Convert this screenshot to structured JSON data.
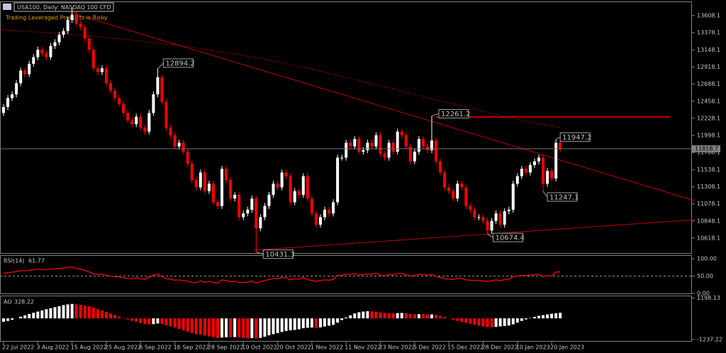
{
  "chart_data": {
    "type": "candlestick",
    "title": "USA100, Daily: NASDAQ 100 CFD",
    "subtitle": "Trading Leveraged Products is Risky",
    "up_color": "#ffffff",
    "down_color": "#ff0000",
    "categories": [
      "22 Jul 2022",
      null,
      null,
      null,
      null,
      null,
      null,
      null,
      "3 Aug 2022",
      null,
      null,
      null,
      null,
      null,
      null,
      null,
      "15 Aug 2022",
      null,
      null,
      null,
      null,
      null,
      null,
      null,
      "25 Aug 2022",
      null,
      null,
      null,
      null,
      null,
      null,
      null,
      "6 Sep 2022",
      null,
      null,
      null,
      null,
      null,
      null,
      null,
      "16 Sep 2022",
      null,
      null,
      null,
      null,
      null,
      null,
      null,
      "28 Sep 2022",
      null,
      null,
      null,
      null,
      null,
      null,
      null,
      "10 Oct 2022",
      null,
      null,
      null,
      null,
      null,
      null,
      null,
      "20 Oct 2022",
      null,
      null,
      null,
      null,
      null,
      null,
      null,
      "1 Nov 2022",
      null,
      null,
      null,
      null,
      null,
      null,
      null,
      "11 Nov 2022",
      null,
      null,
      null,
      null,
      null,
      null,
      null,
      "23 Nov 2022",
      null,
      null,
      null,
      null,
      null,
      null,
      null,
      "5 Dec 2022",
      null,
      null,
      null,
      null,
      null,
      null,
      null,
      "15 Dec 2022",
      null,
      null,
      null,
      null,
      null,
      null,
      null,
      "28 Dec 2022",
      null,
      null,
      null,
      null,
      null,
      null,
      null,
      "10 Jan 2023",
      null,
      null,
      null,
      null,
      null,
      null,
      null,
      "20 Jan 2023",
      null,
      null
    ],
    "open": [
      12300,
      12380,
      12500,
      12550,
      12700,
      12870,
      12820,
      12960,
      13050,
      13150,
      13100,
      13050,
      13200,
      13250,
      13350,
      13400,
      13550,
      13620,
      13500,
      13450,
      13300,
      13150,
      12900,
      12850,
      12900,
      12700,
      12600,
      12500,
      12420,
      12300,
      12200,
      12150,
      12250,
      12100,
      12050,
      12300,
      12550,
      12780,
      12450,
      12100,
      12000,
      11850,
      11900,
      11780,
      11620,
      11400,
      11300,
      11500,
      11250,
      11350,
      11100,
      11050,
      11550,
      11400,
      11150,
      11200,
      10900,
      10950,
      11000,
      11150,
      10750,
      10900,
      11050,
      11200,
      11350,
      11300,
      11500,
      11450,
      11100,
      11250,
      11200,
      11450,
      11150,
      10950,
      10800,
      10900,
      11000,
      10950,
      11100,
      11700,
      11700,
      11900,
      11850,
      11950,
      11780,
      11800,
      11900,
      11850,
      12000,
      11750,
      11700,
      11900,
      11780,
      12050,
      12000,
      11850,
      11650,
      11780,
      11950,
      11850,
      11800,
      11930,
      11650,
      11500,
      11300,
      11250,
      11150,
      11350,
      11300,
      11050,
      11000,
      10900,
      10900,
      10850,
      10720,
      10850,
      10950,
      10800,
      10980,
      11000,
      11350,
      11450,
      11550,
      11500,
      11600,
      11650,
      11700,
      11350,
      11520,
      11420,
      11900
    ],
    "high": [
      12420,
      12540,
      12590,
      12740,
      12910,
      12910,
      13000,
      13090,
      13190,
      13190,
      13140,
      13240,
      13290,
      13390,
      13440,
      13590,
      13720,
      13660,
      13540,
      13490,
      13340,
      13190,
      12940,
      12940,
      12940,
      12740,
      12640,
      12540,
      12460,
      12340,
      12240,
      12290,
      12290,
      12140,
      12340,
      12590,
      12894.2,
      12820,
      12490,
      12140,
      12040,
      11940,
      11940,
      11820,
      11660,
      11440,
      11540,
      11540,
      11390,
      11390,
      11140,
      11590,
      11590,
      11440,
      11240,
      11240,
      10990,
      11040,
      11190,
      11190,
      10940,
      11090,
      11240,
      11390,
      11390,
      11540,
      11540,
      11490,
      11290,
      11290,
      11490,
      11490,
      11190,
      10990,
      10940,
      11040,
      11040,
      11140,
      11740,
      11740,
      11940,
      11940,
      11990,
      11990,
      11840,
      11940,
      11940,
      12040,
      12040,
      11790,
      11940,
      11940,
      12090,
      12090,
      12040,
      11890,
      11820,
      11990,
      11990,
      11890,
      12261.2,
      11970,
      11690,
      11540,
      11340,
      11290,
      11390,
      11390,
      11340,
      11090,
      11040,
      10940,
      10940,
      10890,
      10890,
      10990,
      10990,
      11020,
      11040,
      11390,
      11490,
      11590,
      11590,
      11640,
      11690,
      11740,
      11740,
      11560,
      11560,
      11947.2,
      11940
    ],
    "low": [
      12260,
      12340,
      12460,
      12510,
      12660,
      12780,
      12780,
      12920,
      13010,
      13060,
      13010,
      13010,
      13160,
      13210,
      13310,
      13360,
      13510,
      13460,
      13410,
      13260,
      13110,
      12860,
      12810,
      12810,
      12660,
      12560,
      12460,
      12380,
      12260,
      12160,
      12110,
      12110,
      12060,
      12010,
      12010,
      12260,
      12510,
      12410,
      12060,
      11960,
      11810,
      11810,
      11740,
      11580,
      11360,
      11260,
      11260,
      11210,
      11210,
      11060,
      11010,
      11010,
      11360,
      11110,
      11110,
      10860,
      10860,
      10910,
      10960,
      10431.3,
      10710,
      10860,
      11010,
      11160,
      11260,
      11260,
      11410,
      11060,
      11060,
      11160,
      11160,
      11110,
      10910,
      10760,
      10760,
      10860,
      10910,
      10910,
      11060,
      11660,
      11660,
      11810,
      11810,
      11740,
      11740,
      11760,
      11810,
      11810,
      11710,
      11660,
      11660,
      11740,
      11740,
      11960,
      11810,
      11610,
      11610,
      11740,
      11810,
      11760,
      11760,
      11610,
      11460,
      11260,
      11210,
      11110,
      11110,
      11260,
      11010,
      10960,
      10860,
      10860,
      10810,
      10674.4,
      10680,
      10810,
      10760,
      10760,
      10940,
      10960,
      11310,
      11410,
      11460,
      11460,
      11560,
      11610,
      11247.1,
      11310,
      11380,
      11380,
      11780
    ],
    "close": [
      12380,
      12500,
      12550,
      12700,
      12870,
      12820,
      12960,
      13050,
      13150,
      13100,
      13050,
      13200,
      13250,
      13350,
      13400,
      13550,
      13620,
      13500,
      13450,
      13300,
      13150,
      12900,
      12850,
      12900,
      12700,
      12600,
      12500,
      12420,
      12300,
      12200,
      12150,
      12250,
      12100,
      12050,
      12300,
      12550,
      12780,
      12450,
      12100,
      12000,
      11850,
      11900,
      11780,
      11620,
      11400,
      11300,
      11500,
      11250,
      11350,
      11100,
      11050,
      11550,
      11400,
      11150,
      11200,
      10900,
      10950,
      11000,
      11150,
      10750,
      10900,
      11050,
      11200,
      11350,
      11300,
      11500,
      11450,
      11100,
      11250,
      11200,
      11450,
      11150,
      10950,
      10800,
      10900,
      11000,
      10950,
      11100,
      11700,
      11700,
      11900,
      11850,
      11950,
      11780,
      11800,
      11900,
      11850,
      12000,
      11750,
      11700,
      11900,
      11780,
      12050,
      12000,
      11850,
      11650,
      11780,
      11950,
      11850,
      11800,
      11930,
      11650,
      11500,
      11300,
      11250,
      11150,
      11350,
      11300,
      11050,
      11000,
      10900,
      10900,
      10850,
      10720,
      10850,
      10950,
      10800,
      10980,
      11000,
      11350,
      11450,
      11550,
      11500,
      11600,
      11650,
      11700,
      11350,
      11520,
      11420,
      11900,
      11818.7
    ],
    "ylim": [
      10418,
      13789
    ],
    "yticks": [
      13608.1,
      13378.1,
      13148.1,
      12918.1,
      12688.1,
      12458.1,
      12228.1,
      11998.1,
      11768.1,
      11538.1,
      11308.1,
      11078.1,
      10848.1,
      10618.1
    ],
    "indicators": [
      {
        "type": "line",
        "name": "RSI(14)",
        "color": "#ff0000",
        "ylim": [
          0,
          108
        ],
        "level": 50,
        "yticks": [
          {
            "value": 100,
            "label": "100.00"
          },
          {
            "value": 50,
            "label": "50.00"
          },
          {
            "value": 0,
            "label": "0.00"
          }
        ],
        "values": [
          58,
          60,
          61,
          63,
          66,
          65,
          67,
          68,
          70,
          69,
          68,
          70,
          71,
          72,
          73,
          75,
          76,
          72,
          70,
          66,
          62,
          56,
          55,
          56,
          52,
          50,
          48,
          47,
          45,
          43,
          42,
          45,
          42,
          41,
          47,
          52,
          56,
          49,
          43,
          41,
          38,
          39,
          37,
          35,
          32,
          31,
          36,
          32,
          35,
          31,
          30,
          39,
          37,
          34,
          35,
          31,
          32,
          33,
          36,
          30,
          34,
          37,
          40,
          43,
          42,
          46,
          45,
          39,
          42,
          41,
          46,
          40,
          37,
          35,
          37,
          39,
          38,
          41,
          52,
          52,
          56,
          55,
          57,
          53,
          54,
          56,
          55,
          58,
          52,
          51,
          55,
          53,
          58,
          57,
          54,
          50,
          52,
          56,
          54,
          53,
          55,
          49,
          46,
          42,
          41,
          40,
          44,
          43,
          39,
          38,
          37,
          37,
          36,
          34,
          37,
          39,
          36,
          40,
          41,
          48,
          50,
          52,
          51,
          53,
          54,
          55,
          48,
          52,
          50,
          62,
          61.77
        ]
      },
      {
        "type": "bar",
        "name": "AO",
        "ylim": [
          -1330,
          1300
        ],
        "yticks": [
          1198.13,
          -1237.22
        ],
        "values": [
          -200,
          -150,
          -80,
          0,
          100,
          180,
          260,
          330,
          400,
          470,
          540,
          600,
          660,
          720,
          780,
          820,
          850,
          830,
          800,
          760,
          700,
          620,
          540,
          470,
          380,
          290,
          200,
          110,
          20,
          -60,
          -140,
          -200,
          -270,
          -330,
          -360,
          -340,
          -300,
          -330,
          -400,
          -470,
          -540,
          -620,
          -700,
          -780,
          -860,
          -930,
          -960,
          -1010,
          -1060,
          -1100,
          -1150,
          -1130,
          -1110,
          -1120,
          -1100,
          -1130,
          -1150,
          -1180,
          -1160,
          -1190,
          -1150,
          -1080,
          -1000,
          -930,
          -870,
          -800,
          -740,
          -700,
          -680,
          -640,
          -580,
          -550,
          -540,
          -560,
          -530,
          -480,
          -430,
          -380,
          -250,
          -100,
          50,
          180,
          290,
          360,
          400,
          420,
          410,
          390,
          350,
          320,
          300,
          290,
          310,
          320,
          300,
          260,
          240,
          250,
          240,
          220,
          230,
          200,
          150,
          80,
          0,
          -80,
          -150,
          -200,
          -260,
          -320,
          -380,
          -430,
          -480,
          -510,
          -520,
          -500,
          -470,
          -450,
          -420,
          -350,
          -250,
          -150,
          -60,
          20,
          90,
          150,
          190,
          230,
          270,
          300,
          328.22
        ]
      }
    ]
  }
}
